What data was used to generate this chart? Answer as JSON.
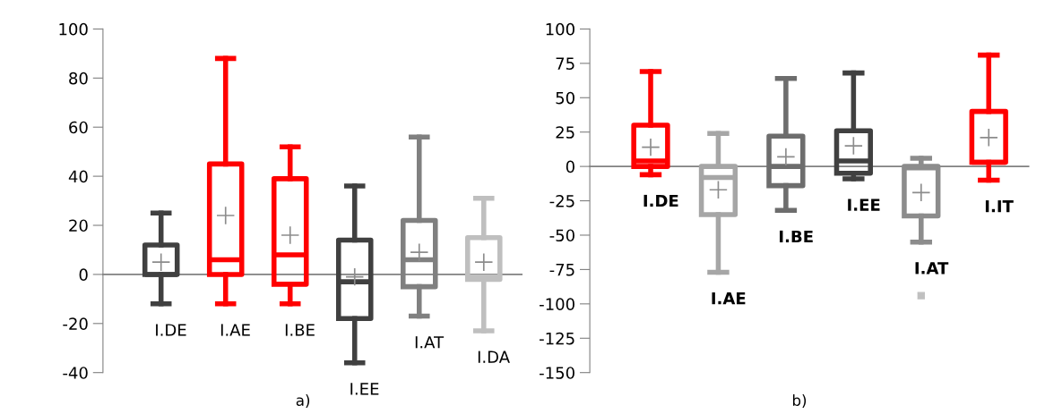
{
  "chart_data": [
    {
      "type": "box",
      "categories": [
        "I.DE",
        "I.AE",
        "I.BE",
        "I.EE",
        "I.AT",
        "I.DA"
      ],
      "colors": [
        "#404040",
        "#ff0000",
        "#ff0000",
        "#404040",
        "#808080",
        "#bfbfbf"
      ],
      "boxes": [
        {
          "low": -12,
          "q1": 0,
          "median": 0,
          "q3": 12,
          "high": 25,
          "mean": 5
        },
        {
          "low": -12,
          "q1": 0,
          "median": 6,
          "q3": 45,
          "high": 88,
          "mean": 24
        },
        {
          "low": -12,
          "q1": -4,
          "median": 8,
          "q3": 39,
          "high": 52,
          "mean": 16
        },
        {
          "low": -36,
          "q1": -18,
          "median": -3,
          "q3": 14,
          "high": 36,
          "mean": -1
        },
        {
          "low": -17,
          "q1": -5,
          "median": 6,
          "q3": 22,
          "high": 56,
          "mean": 9
        },
        {
          "low": -23,
          "q1": -2,
          "median": -1,
          "q3": 15,
          "high": 31,
          "mean": 5
        }
      ],
      "ref_lines": [
        {
          "axis": "y",
          "value": 0,
          "color": "#808080"
        }
      ],
      "ylim": [
        -40,
        100
      ],
      "yticks": [
        -40,
        -20,
        0,
        20,
        40,
        60,
        80,
        100
      ],
      "tick_labels": "y",
      "grid": false,
      "annotations": [
        "a)"
      ]
    },
    {
      "type": "box",
      "categories": [
        "I.DE",
        "I.AE",
        "I.BE",
        "I.EE",
        "I.AT",
        "I.IT"
      ],
      "colors": [
        "#ff0000",
        "#a6a6a6",
        "#6d6d6d",
        "#404040",
        "#8c8c8c",
        "#ff0000"
      ],
      "boxes": [
        {
          "low": -6,
          "q1": 0,
          "median": 4,
          "q3": 30,
          "high": 69,
          "mean": 14
        },
        {
          "low": -77,
          "q1": -35,
          "median": -8,
          "q3": 0,
          "high": 24,
          "mean": -17
        },
        {
          "low": -32,
          "q1": -14,
          "median": 0,
          "q3": 22,
          "high": 64,
          "mean": 7
        },
        {
          "low": -9,
          "q1": -5,
          "median": 4,
          "q3": 26,
          "high": 68,
          "mean": 15
        },
        {
          "low": -55,
          "q1": -36,
          "median": -1,
          "q3": 0,
          "high": 6,
          "mean": -19,
          "outliers": [
            -94
          ]
        },
        {
          "low": -10,
          "q1": 3,
          "median": 3,
          "q3": 40,
          "high": 81,
          "mean": 21
        }
      ],
      "ref_lines": [
        {
          "axis": "y",
          "value": 0,
          "color": "#808080"
        }
      ],
      "ylim": [
        -150,
        100
      ],
      "yticks": [
        -150,
        -125,
        -100,
        -75,
        -50,
        -25,
        0,
        25,
        50,
        75,
        100
      ],
      "tick_labels": "y",
      "grid": false,
      "annotations": [
        "b)"
      ]
    }
  ]
}
